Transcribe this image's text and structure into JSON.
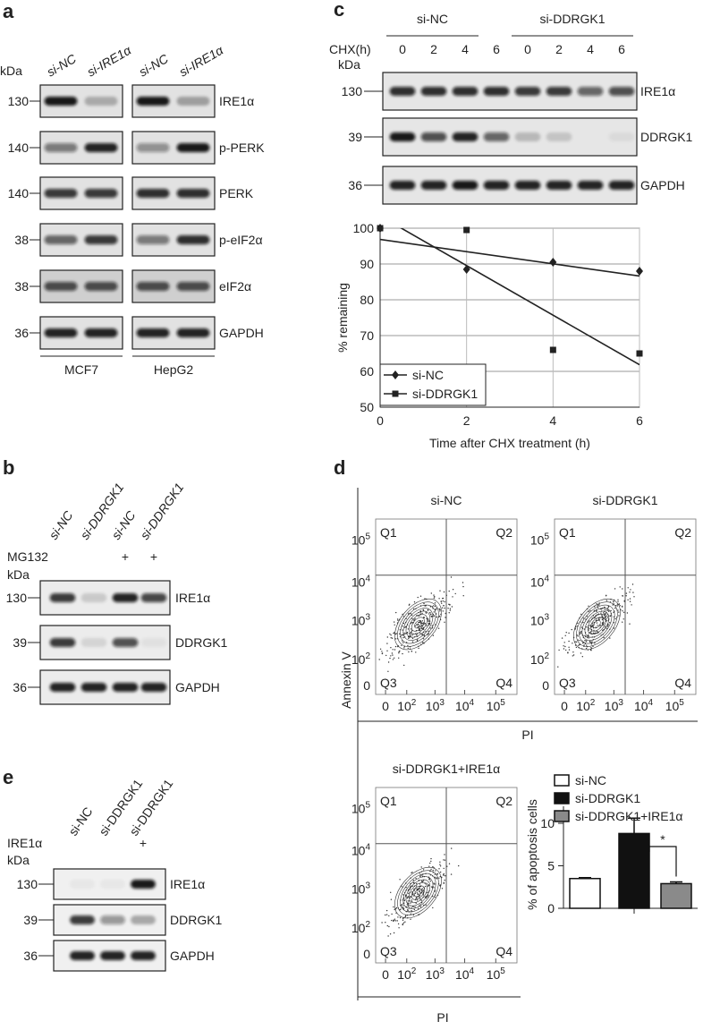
{
  "panels": {
    "a": {
      "label": "a",
      "kda": "kDa",
      "groups": [
        {
          "lanes": [
            "si-NC",
            "si-IRE1α"
          ],
          "cell_line": "MCF7"
        },
        {
          "lanes": [
            "si-NC",
            "si-IRE1α"
          ],
          "cell_line": "HepG2"
        }
      ],
      "rows": [
        {
          "kda": "130",
          "protein": "IRE1α"
        },
        {
          "kda": "140",
          "protein": "p-PERK"
        },
        {
          "kda": "140",
          "protein": "PERK"
        },
        {
          "kda": "38",
          "protein": "p-eIF2α"
        },
        {
          "kda": "38",
          "protein": "eIF2α"
        },
        {
          "kda": "36",
          "protein": "GAPDH"
        }
      ]
    },
    "b": {
      "label": "b",
      "lanes": [
        "si-NC",
        "si-DDRGK1",
        "si-NC",
        "si-DDRGK1"
      ],
      "treatment": "MG132",
      "treated": [
        null,
        null,
        "+",
        "+"
      ],
      "kda": "kDa",
      "rows": [
        {
          "kda": "130",
          "protein": "IRE1α"
        },
        {
          "kda": "39",
          "protein": "DDRGK1"
        },
        {
          "kda": "36",
          "protein": "GAPDH"
        }
      ]
    },
    "c": {
      "label": "c",
      "groups": [
        "si-NC",
        "si-DDRGK1"
      ],
      "time_label": "CHX(h)",
      "times": [
        "0",
        "2",
        "4",
        "6",
        "0",
        "2",
        "4",
        "6"
      ],
      "kda": "kDa",
      "rows": [
        {
          "kda": "130",
          "protein": "IRE1α"
        },
        {
          "kda": "39",
          "protein": "DDRGK1"
        },
        {
          "kda": "36",
          "protein": "GAPDH"
        }
      ]
    },
    "d": {
      "label": "d",
      "y_label": "Annexin V",
      "x_label": "PI",
      "plots": [
        "si-NC",
        "si-DDRGK1",
        "si-DDRGK1+IRE1α"
      ],
      "quadrants": [
        "Q1",
        "Q2",
        "Q3",
        "Q4"
      ],
      "yticks": [
        {
          "base": "10",
          "exp": "5"
        },
        {
          "base": "10",
          "exp": "4"
        },
        {
          "base": "10",
          "exp": "3"
        },
        {
          "base": "10",
          "exp": "2"
        },
        "0"
      ],
      "xticks": [
        "0",
        {
          "base": "10",
          "exp": "2"
        },
        {
          "base": "10",
          "exp": "3"
        },
        {
          "base": "10",
          "exp": "4"
        },
        {
          "base": "10",
          "exp": "5"
        }
      ]
    },
    "e": {
      "label": "e",
      "lanes": [
        "si-NC",
        "si-DDRGK1",
        "si-DDRGK1"
      ],
      "treatment": "IRE1α",
      "treated": [
        null,
        null,
        "+"
      ],
      "kda": "kDa",
      "rows": [
        {
          "kda": "130",
          "protein": "IRE1α"
        },
        {
          "kda": "39",
          "protein": "DDRGK1"
        },
        {
          "kda": "36",
          "protein": "GAPDH"
        }
      ]
    }
  },
  "chart_data": [
    {
      "type": "line",
      "y_label": "% remaining",
      "x_label": "Time after CHX treatment (h)",
      "x": [
        0,
        2,
        4,
        6
      ],
      "series": [
        {
          "name": "si-NC",
          "color": "#222222",
          "marker": "diamond",
          "values": [
            100,
            88.5,
            90.5,
            88
          ]
        },
        {
          "name": "si-DDRGK1",
          "color": "#222222",
          "marker": "square",
          "values": [
            100,
            99.5,
            66,
            65
          ]
        }
      ],
      "xlim": [
        0,
        6
      ],
      "ylim": [
        50,
        100
      ],
      "xticks": [
        0,
        2,
        4,
        6
      ],
      "yticks": [
        50,
        60,
        70,
        80,
        90,
        100
      ],
      "grid": true,
      "trendline": "linear",
      "legend": "lower left"
    },
    {
      "type": "bar",
      "y_label": "% of apoptosis cells",
      "categories": [
        "si-NC",
        "si-DDRGK1",
        "si-DDRGK1+IRE1α"
      ],
      "values": [
        3.5,
        8.8,
        2.9
      ],
      "errors": [
        0.1,
        1.8,
        0.2
      ],
      "colors": [
        "#ffffff",
        "#111111",
        "#8a8a8a"
      ],
      "ylim": [
        0,
        12
      ],
      "yticks": [
        0,
        5,
        10
      ],
      "annotation": "*",
      "legend": "upper left"
    }
  ]
}
